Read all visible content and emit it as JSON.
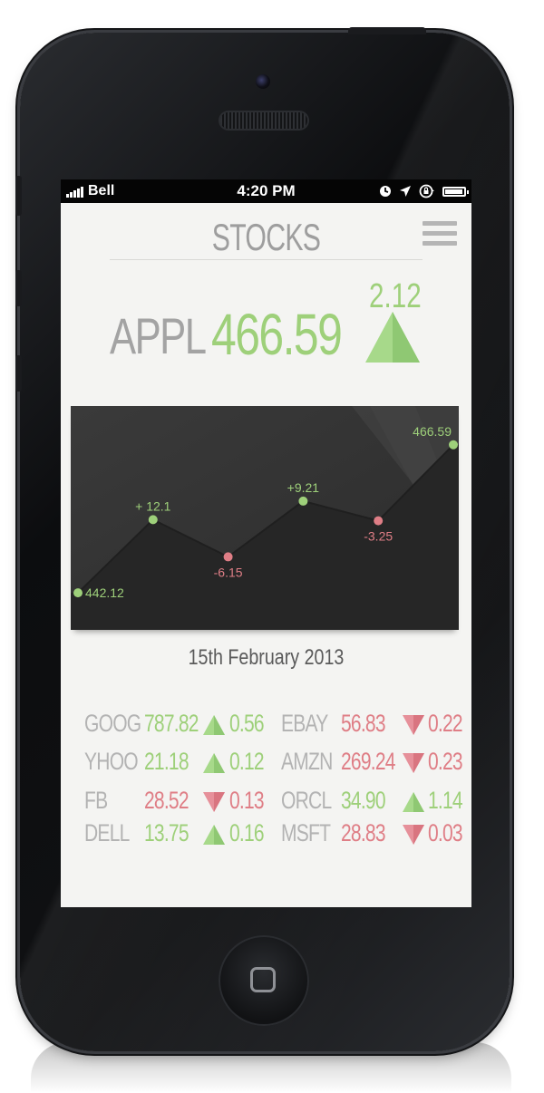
{
  "status_bar": {
    "carrier": "Bell",
    "time": "4:20 PM",
    "icons": [
      "signal-bars-icon",
      "clock-icon",
      "location-arrow-icon",
      "rotation-lock-icon",
      "battery-icon"
    ]
  },
  "header": {
    "title": "STOCKS",
    "menu_icon": "hamburger-menu-icon"
  },
  "headline": {
    "symbol": "APPL",
    "price": "466.59",
    "change": "2.12",
    "direction": "up"
  },
  "chart_data": {
    "type": "line",
    "points": [
      {
        "label": "442.12",
        "value": 442.12,
        "direction": "up"
      },
      {
        "label": "+ 12.1",
        "value": 454.22,
        "direction": "up"
      },
      {
        "label": "-6.15",
        "value": 448.07,
        "direction": "down"
      },
      {
        "label": "+9.21",
        "value": 457.28,
        "direction": "up"
      },
      {
        "label": "-3.25",
        "value": 454.03,
        "direction": "down"
      },
      {
        "label": "466.59",
        "value": 466.59,
        "direction": "up"
      }
    ],
    "ylim": [
      436,
      470
    ],
    "grid": false,
    "date": "15th February 2013"
  },
  "quotes": [
    {
      "symbol": "GOOG",
      "price": "787.82",
      "change": "0.56",
      "direction": "up"
    },
    {
      "symbol": "EBAY",
      "price": "56.83",
      "change": "0.22",
      "direction": "down"
    },
    {
      "symbol": "YHOO",
      "price": "21.18",
      "change": "0.12",
      "direction": "up"
    },
    {
      "symbol": "AMZN",
      "price": "269.24",
      "change": "0.23",
      "direction": "down"
    },
    {
      "symbol": "FB",
      "price": "28.52",
      "change": "0.13",
      "direction": "down"
    },
    {
      "symbol": "ORCL",
      "price": "34.90",
      "change": "1.14",
      "direction": "up"
    },
    {
      "symbol": "DELL",
      "price": "13.75",
      "change": "0.16",
      "direction": "up"
    },
    {
      "symbol": "MSFT",
      "price": "28.83",
      "change": "0.03",
      "direction": "down"
    }
  ],
  "colors": {
    "up": "#9ed07a",
    "down": "#df7e86",
    "chart_bg": "#333333",
    "chart_fill": "#2a2a2a",
    "chart_line": "#1f1f1f"
  }
}
